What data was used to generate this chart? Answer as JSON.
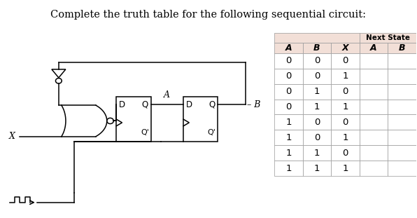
{
  "title": "Complete the truth table for the following sequential circuit:",
  "title_fontsize": 10.5,
  "background_color": "#ffffff",
  "table": {
    "col_headers": [
      "A",
      "B",
      "X",
      "A",
      "B"
    ],
    "span_header": "Next State",
    "rows": [
      [
        0,
        0,
        0,
        "",
        ""
      ],
      [
        0,
        0,
        1,
        "",
        ""
      ],
      [
        0,
        1,
        0,
        "",
        ""
      ],
      [
        0,
        1,
        1,
        "",
        ""
      ],
      [
        1,
        0,
        0,
        "",
        ""
      ],
      [
        1,
        0,
        1,
        "",
        ""
      ],
      [
        1,
        1,
        0,
        "",
        ""
      ],
      [
        1,
        1,
        1,
        "",
        ""
      ]
    ],
    "header_bg": "#f2dfd7",
    "cell_bg": "#ffffff",
    "line_color": "#aaaaaa"
  }
}
